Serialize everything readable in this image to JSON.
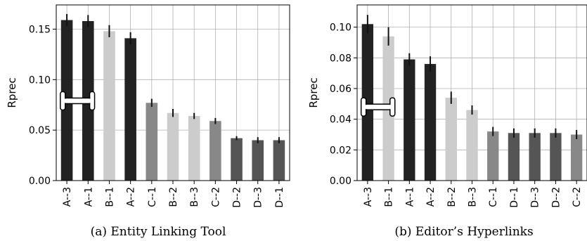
{
  "chart_data": [
    {
      "type": "bar",
      "caption": "(a) Entity Linking Tool",
      "ylabel": "Rprec",
      "ylim": [
        0,
        0.174
      ],
      "yticks": [
        0.0,
        0.05,
        0.1,
        0.15
      ],
      "grid": true,
      "categories": [
        "A--3",
        "A--1",
        "B--1",
        "A--2",
        "C--1",
        "B--2",
        "B--3",
        "C--2",
        "D--2",
        "D--3",
        "D--1"
      ],
      "values": [
        0.159,
        0.158,
        0.148,
        0.141,
        0.077,
        0.067,
        0.064,
        0.059,
        0.042,
        0.04,
        0.04
      ],
      "errors": [
        0.006,
        0.006,
        0.006,
        0.006,
        0.004,
        0.004,
        0.003,
        0.003,
        0.002,
        0.003,
        0.003
      ],
      "colors": [
        "#222222",
        "#222222",
        "#cccccc",
        "#222222",
        "#888888",
        "#cccccc",
        "#cccccc",
        "#888888",
        "#555555",
        "#555555",
        "#555555"
      ],
      "bracket_value": 0.079
    },
    {
      "type": "bar",
      "caption": "(b) Editor’s Hyperlinks",
      "ylabel": "Rprec",
      "ylim": [
        0,
        0.1145
      ],
      "yticks": [
        0.0,
        0.02,
        0.04,
        0.06,
        0.08,
        0.1
      ],
      "grid": true,
      "categories": [
        "A--3",
        "B--1",
        "A--1",
        "A--2",
        "B--2",
        "B--3",
        "C--1",
        "D--1",
        "D--3",
        "D--2",
        "C--2"
      ],
      "values": [
        0.102,
        0.094,
        0.079,
        0.076,
        0.054,
        0.046,
        0.032,
        0.031,
        0.031,
        0.031,
        0.03
      ],
      "errors": [
        0.006,
        0.006,
        0.004,
        0.005,
        0.004,
        0.003,
        0.003,
        0.003,
        0.003,
        0.003,
        0.003
      ],
      "colors": [
        "#222222",
        "#cccccc",
        "#222222",
        "#222222",
        "#cccccc",
        "#cccccc",
        "#888888",
        "#555555",
        "#555555",
        "#555555",
        "#888888"
      ],
      "bracket_value": 0.048
    }
  ]
}
